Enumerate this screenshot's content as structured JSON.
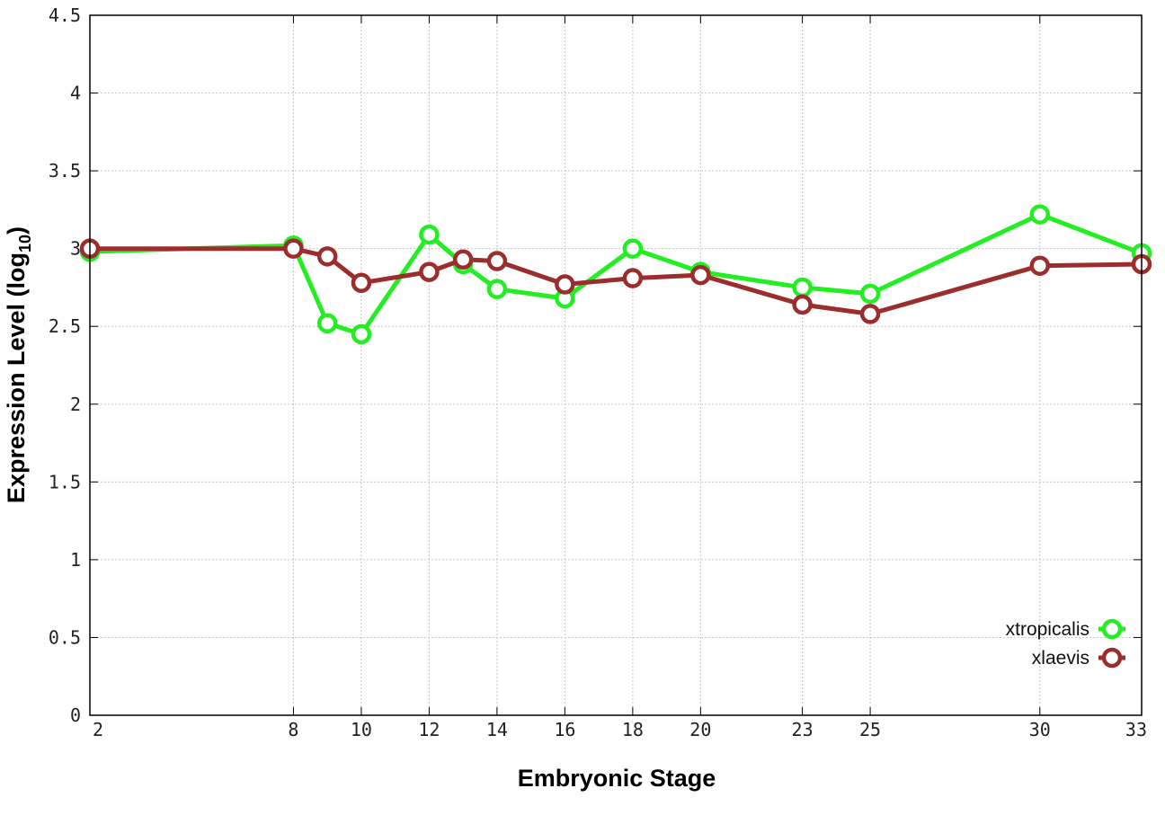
{
  "chart_data": {
    "type": "line",
    "xlabel": "Embryonic Stage",
    "ylabel": "Expression Level (log",
    "ylabel_subscript": "10",
    "ylabel_close": ")",
    "xlim": [
      2,
      33
    ],
    "ylim": [
      0,
      4.5
    ],
    "x_ticks": [
      2,
      8,
      10,
      12,
      14,
      16,
      18,
      20,
      23,
      25,
      30,
      33
    ],
    "y_ticks": [
      0,
      0.5,
      1,
      1.5,
      2,
      2.5,
      3,
      3.5,
      4,
      4.5
    ],
    "y_tick_labels": [
      "0",
      "0.5",
      "1",
      "1.5",
      "2",
      "2.5",
      "3",
      "3.5",
      "4",
      "4.5"
    ],
    "grid": true,
    "legend_position": "bottom-right",
    "series": [
      {
        "name": "xtropicalis",
        "color": "#22ee22",
        "x": [
          2,
          8,
          9,
          10,
          12,
          13,
          14,
          16,
          18,
          20,
          23,
          25,
          30,
          33
        ],
        "y": [
          2.98,
          3.02,
          2.52,
          2.45,
          3.09,
          2.9,
          2.74,
          2.68,
          3.0,
          2.85,
          2.75,
          2.71,
          3.22,
          2.97
        ]
      },
      {
        "name": "xlaevis",
        "color": "#9b2d2d",
        "x": [
          2,
          8,
          9,
          10,
          12,
          13,
          14,
          16,
          18,
          20,
          23,
          25,
          30,
          33
        ],
        "y": [
          3.0,
          3.0,
          2.95,
          2.78,
          2.85,
          2.93,
          2.92,
          2.77,
          2.81,
          2.83,
          2.64,
          2.58,
          2.89,
          2.9
        ]
      }
    ]
  }
}
